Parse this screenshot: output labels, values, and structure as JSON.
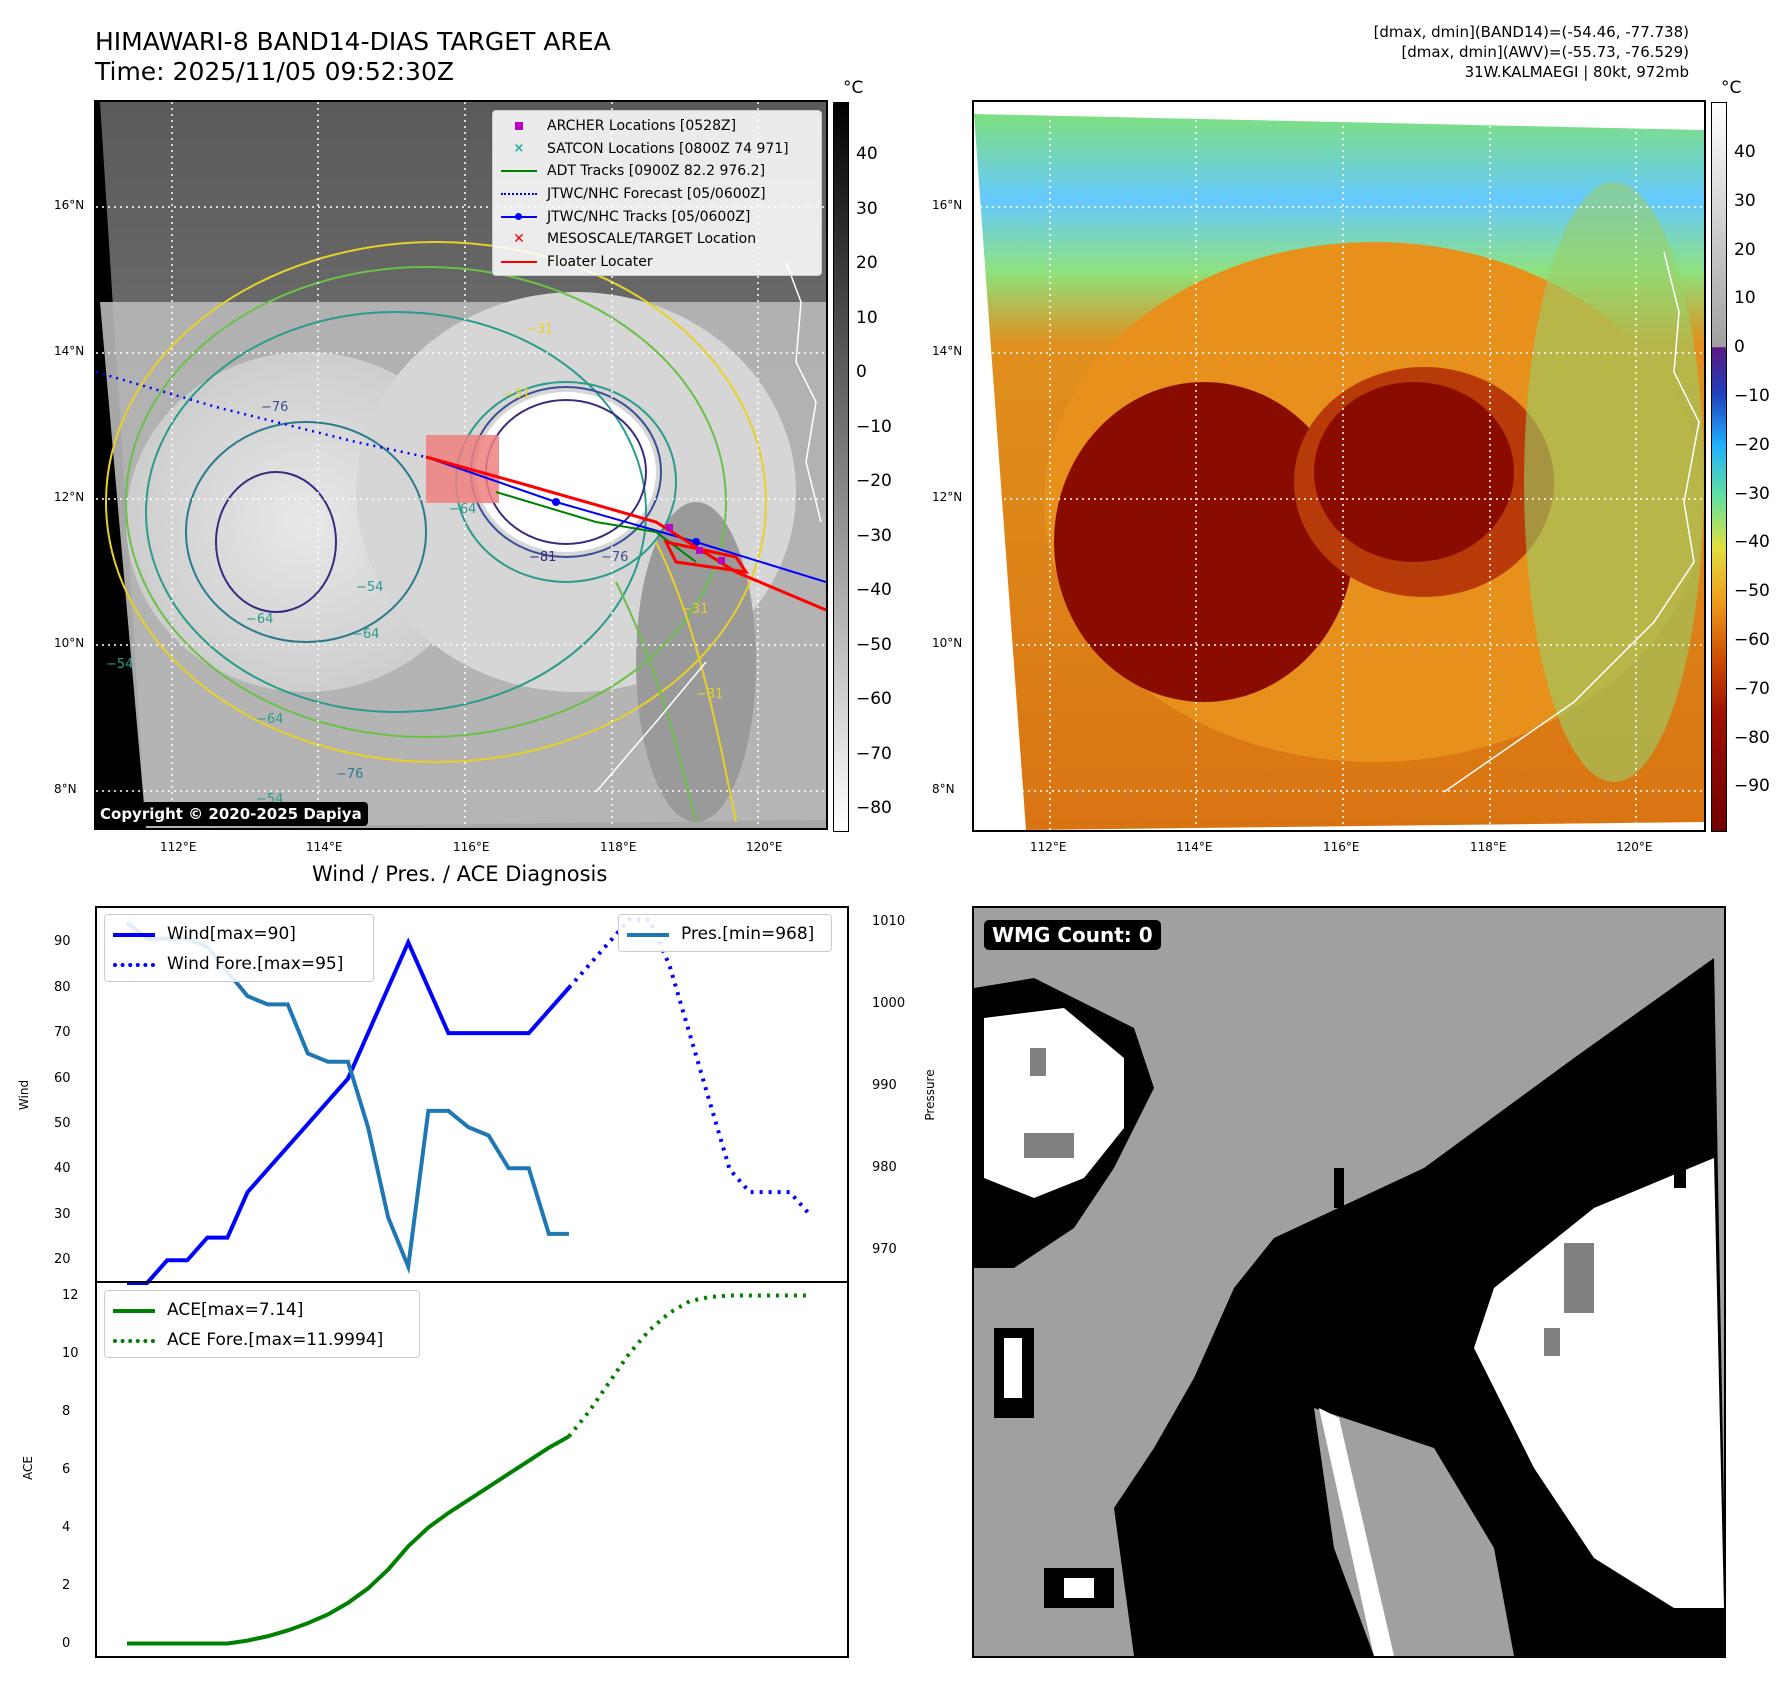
{
  "header": {
    "title_line1": "HIMAWARI-8 BAND14-DIAS TARGET AREA",
    "title_line2": "Time: 2025/11/05 09:52:30Z",
    "info_line1": "[dmax, dmin](BAND14)=(-54.46, -77.738)",
    "info_line2": "[dmax, dmin](AWV)=(-55.73, -76.529)",
    "info_line3": "31W.KALMAEGI | 80kt, 972mb"
  },
  "colors": {
    "wind": "#0000ff",
    "pressure": "#1f77b4",
    "ace": "#008000",
    "track_red": "#ff0000",
    "adt_green": "#008000",
    "archer": "#c000c0",
    "satcon": "#20b2aa"
  },
  "map_left": {
    "colorbar_unit": "°C",
    "colorbar_ticks": [
      "40",
      "30",
      "20",
      "10",
      "0",
      "−10",
      "−20",
      "−30",
      "−40",
      "−50",
      "−60",
      "−70",
      "−80"
    ],
    "lat_ticks": [
      "16°N",
      "14°N",
      "12°N",
      "10°N",
      "8°N"
    ],
    "lon_ticks": [
      "112°E",
      "114°E",
      "116°E",
      "118°E",
      "120°E"
    ],
    "contour_labels": [
      "−76",
      "−31",
      "−31",
      "−64",
      "−81",
      "−76",
      "−54",
      "−64",
      "−64",
      "−64",
      "−54",
      "−31",
      "−31",
      "−76",
      "−54"
    ],
    "copyright": "Copyright © 2020-2025 Dapiya",
    "legend": [
      {
        "label": "ARCHER Locations [0528Z]",
        "symbol": "square-marker"
      },
      {
        "label": "SATCON Locations [0800Z 74 971]",
        "symbol": "x-marker"
      },
      {
        "label": "ADT Tracks [0900Z 82.2 976.2]",
        "symbol": "solid-line"
      },
      {
        "label": "JTWC/NHC Forecast [05/0600Z]",
        "symbol": "dotted-line"
      },
      {
        "label": "JTWC/NHC Tracks [05/0600Z]",
        "symbol": "line-dot"
      },
      {
        "label": "MESOSCALE/TARGET Location",
        "symbol": "x-marker"
      },
      {
        "label": "Floater Locater",
        "symbol": "solid-line"
      }
    ]
  },
  "map_right": {
    "colorbar_unit": "°C",
    "colorbar_ticks": [
      "40",
      "30",
      "20",
      "10",
      "0",
      "−10",
      "−20",
      "−30",
      "−40",
      "−50",
      "−60",
      "−70",
      "−80",
      "−90"
    ],
    "lat_ticks": [
      "16°N",
      "14°N",
      "12°N",
      "10°N",
      "8°N"
    ],
    "lon_ticks": [
      "112°E",
      "114°E",
      "116°E",
      "118°E",
      "120°E"
    ]
  },
  "wmg": {
    "badge": "WMG Count: 0"
  },
  "chart_data": [
    {
      "type": "line",
      "title": "Wind / Pres. / ACE Diagnosis",
      "ylabel": "Wind",
      "y2label": "Pressure",
      "ylim": [
        15,
        98
      ],
      "y2lim": [
        966,
        1012
      ],
      "yticks": [
        20,
        30,
        40,
        50,
        60,
        70,
        80,
        90
      ],
      "y2ticks": [
        970,
        980,
        990,
        1000,
        1010
      ],
      "legend_left": [
        "Wind[max=90]",
        "Wind Fore.[max=95]"
      ],
      "legend_right": [
        "Pres.[min=968]"
      ],
      "series": [
        {
          "name": "Wind[max=90]",
          "axis": "left",
          "style": "solid",
          "x": [
            0,
            1,
            2,
            3,
            4,
            5,
            6,
            7,
            8,
            9,
            10,
            11,
            12,
            13,
            14,
            15,
            16,
            17,
            18,
            19,
            20,
            21,
            22
          ],
          "values": [
            15,
            15,
            20,
            20,
            25,
            25,
            35,
            40,
            45,
            50,
            55,
            60,
            70,
            80,
            90,
            80,
            70,
            70,
            70,
            70,
            70,
            75,
            80
          ]
        },
        {
          "name": "Wind Fore.[max=95]",
          "axis": "left",
          "style": "dotted",
          "x": [
            22,
            23,
            24,
            25,
            26,
            27,
            28,
            29,
            30,
            31,
            32,
            33,
            34
          ],
          "values": [
            80,
            85,
            90,
            95,
            95,
            85,
            70,
            55,
            40,
            35,
            35,
            35,
            30
          ]
        },
        {
          "name": "Pres.[min=968]",
          "axis": "right",
          "style": "solid",
          "x": [
            0,
            1,
            2,
            3,
            4,
            5,
            6,
            7,
            8,
            9,
            10,
            11,
            12,
            13,
            14,
            15,
            16,
            17,
            18,
            19,
            20,
            21,
            22
          ],
          "values": [
            1010,
            1008,
            1008,
            1008,
            1007,
            1004,
            1001,
            1000,
            1000,
            994,
            993,
            993,
            985,
            974,
            968,
            987,
            987,
            985,
            984,
            980,
            980,
            972,
            972
          ]
        }
      ]
    },
    {
      "type": "line",
      "ylabel": "ACE",
      "ylim": [
        -0.5,
        12.5
      ],
      "yticks": [
        0,
        2,
        4,
        6,
        8,
        10,
        12
      ],
      "legend": [
        "ACE[max=7.14]",
        "ACE Fore.[max=11.9994]"
      ],
      "series": [
        {
          "name": "ACE[max=7.14]",
          "style": "solid",
          "x": [
            0,
            1,
            2,
            3,
            4,
            5,
            6,
            7,
            8,
            9,
            10,
            11,
            12,
            13,
            14,
            15,
            16,
            17,
            18,
            19,
            20,
            21,
            22
          ],
          "values": [
            0,
            0,
            0,
            0,
            0,
            0,
            0.1,
            0.25,
            0.45,
            0.7,
            1.0,
            1.4,
            1.9,
            2.55,
            3.35,
            4.0,
            4.5,
            4.95,
            5.4,
            5.85,
            6.3,
            6.75,
            7.14
          ]
        },
        {
          "name": "ACE Fore.[max=11.9994]",
          "style": "dotted",
          "x": [
            22,
            23,
            24,
            25,
            26,
            27,
            28,
            29,
            30,
            31,
            32,
            33,
            34
          ],
          "values": [
            7.14,
            8.0,
            9.0,
            10.0,
            10.8,
            11.4,
            11.8,
            11.95,
            12.0,
            12.0,
            12.0,
            12.0,
            12.0
          ]
        }
      ]
    }
  ]
}
